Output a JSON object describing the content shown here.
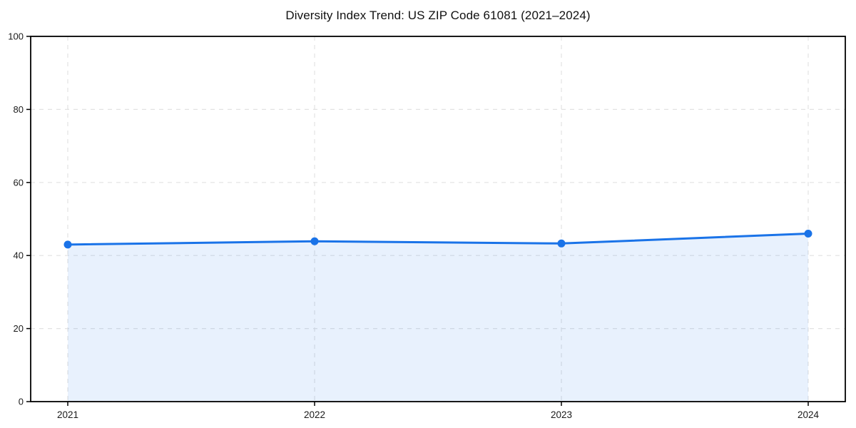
{
  "page": {
    "background": "#ffffff"
  },
  "chart_data": {
    "type": "area",
    "title": "Diversity Index Trend: US ZIP Code 61081 (2021–2024)",
    "categories": [
      "2021",
      "2022",
      "2023",
      "2024"
    ],
    "series": [
      {
        "name": "Diversity Index",
        "values": [
          43.0,
          43.9,
          43.3,
          46.0
        ]
      }
    ],
    "xlabel": "",
    "ylabel": "",
    "ylim": [
      0,
      100
    ],
    "yticks": [
      0,
      20,
      40,
      60,
      80,
      100
    ],
    "grid": "dashed-both-axes",
    "legend": "none",
    "colors": {
      "line": "#1a73e8",
      "marker": "#1a73e8",
      "fill": "rgba(26,115,232,0.10)",
      "grid": "#e2e2e2",
      "axis": "#000000",
      "tick_label": "#1a1a1a",
      "title": "#111111"
    }
  }
}
